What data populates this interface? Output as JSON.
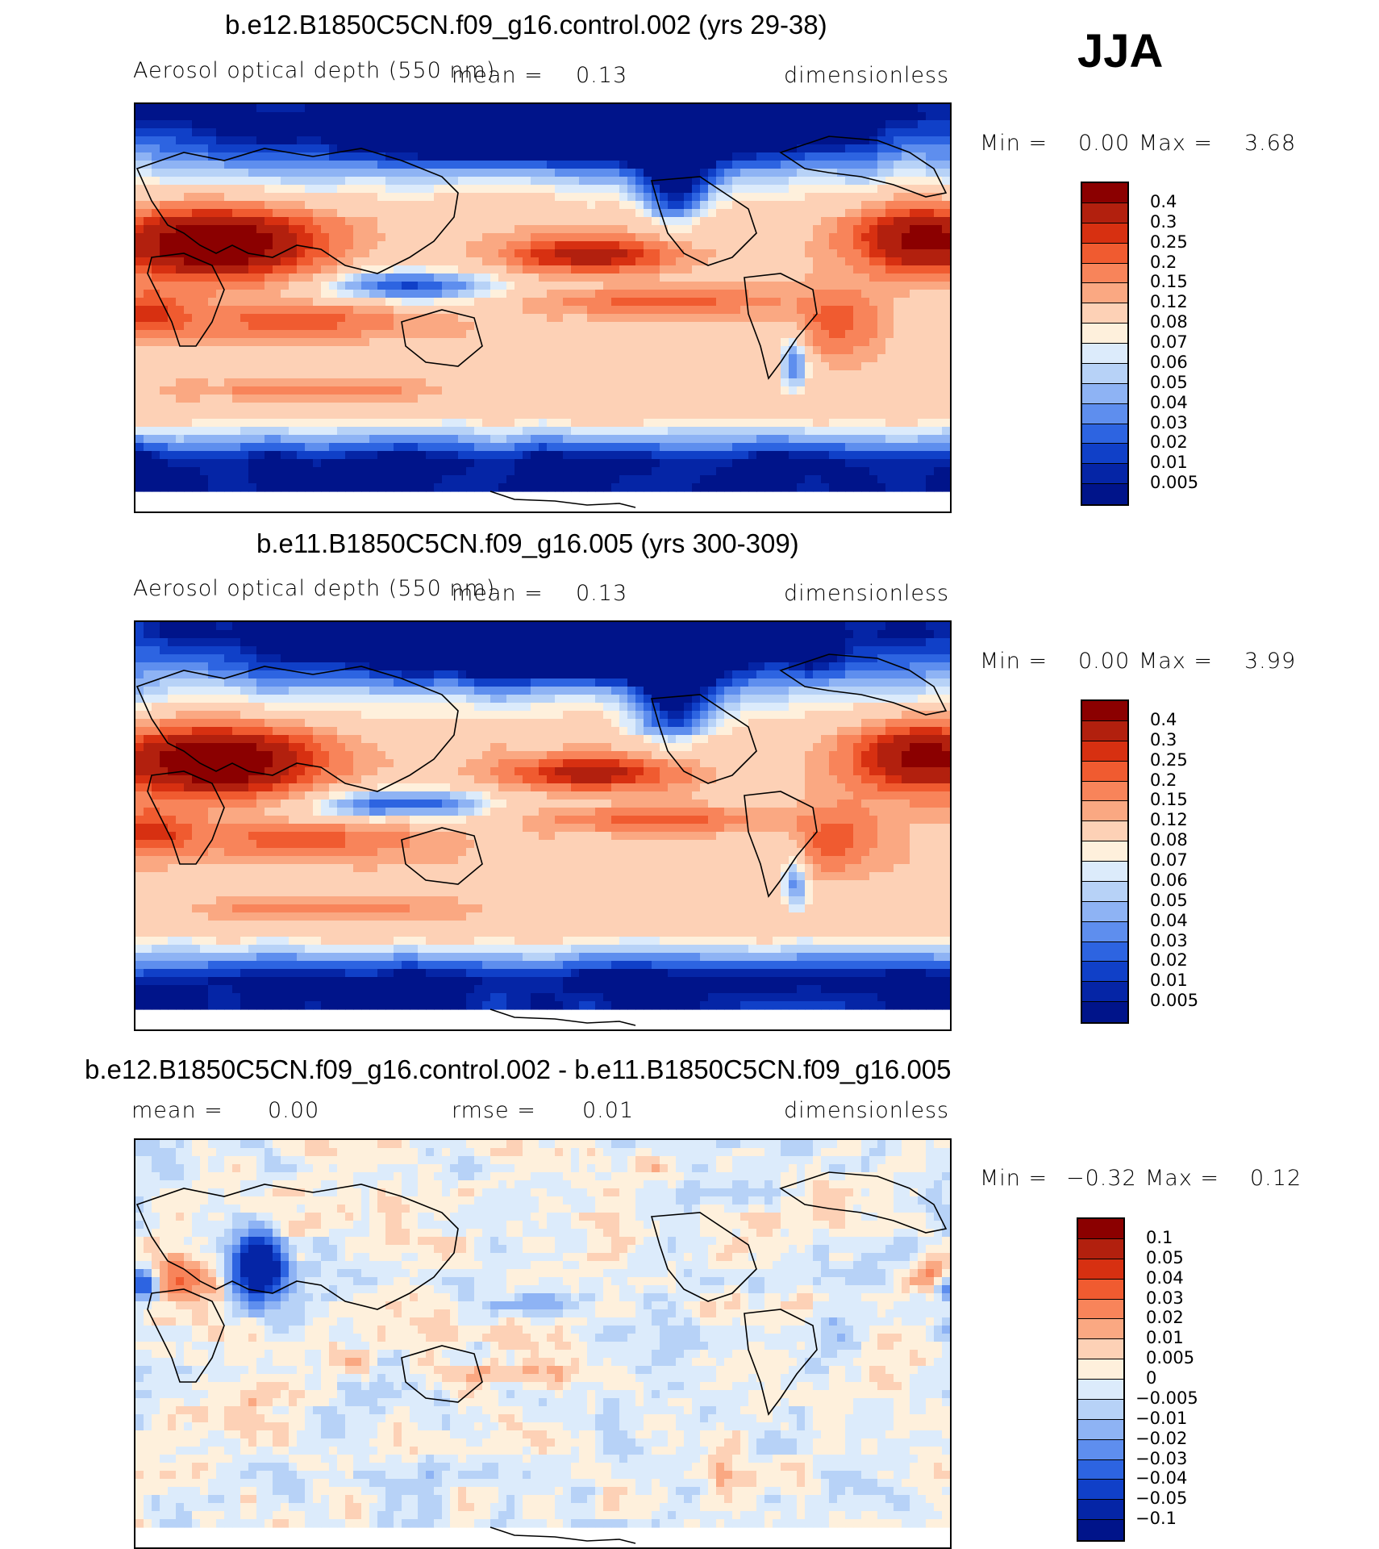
{
  "season": "JJA",
  "colors": {
    "abs_palette": [
      "#8B0000",
      "#B2200E",
      "#D73011",
      "#F05B30",
      "#F8845A",
      "#FAA882",
      "#FDD1B6",
      "#FEF0DC",
      "#DCEBFB",
      "#B7D2F7",
      "#8EB3F4",
      "#5E8EEE",
      "#2D64E1",
      "#1040C8",
      "#0525A6",
      "#00148A"
    ],
    "diff_palette": [
      "#8B0000",
      "#B2200E",
      "#D73011",
      "#F05B30",
      "#F8845A",
      "#FAA882",
      "#FDD1B6",
      "#FEF0DC",
      "#DCEBFB",
      "#B7D2F7",
      "#8EB3F4",
      "#5E8EEE",
      "#2D64E1",
      "#1040C8",
      "#0525A6",
      "#00148A"
    ]
  },
  "panels": [
    {
      "title": "b.e12.B1850C5CN.f09_g16.control.002 (yrs 29-38)",
      "left_label": "Aerosol optical depth (550 nm)",
      "mean_label": "mean =",
      "mean_value": "0.13",
      "units": "dimensionless",
      "min_label": "Min =",
      "min_value": "0.00",
      "max_label": "Max =",
      "max_value": "3.68"
    },
    {
      "title": "b.e11.B1850C5CN.f09_g16.005 (yrs 300-309)",
      "left_label": "Aerosol optical depth (550 nm)",
      "mean_label": "mean =",
      "mean_value": "0.13",
      "units": "dimensionless",
      "min_label": "Min =",
      "min_value": "0.00",
      "max_label": "Max =",
      "max_value": "3.99"
    },
    {
      "title": "b.e12.B1850C5CN.f09_g16.control.002 - b.e11.B1850C5CN.f09_g16.005",
      "left_label": "mean =",
      "left_value": "0.00",
      "rmse_label": "rmse =",
      "rmse_value": "0.01",
      "units": "dimensionless",
      "min_label": "Min =",
      "min_value": "−0.32",
      "max_label": "Max =",
      "max_value": "0.12"
    }
  ],
  "chart_data": [
    {
      "type": "heatmap",
      "title": "b.e12.B1850C5CN.f09_g16.control.002 (yrs 29-38)",
      "variable": "Aerosol optical depth (550 nm)",
      "units": "dimensionless",
      "mean": 0.13,
      "min": 0.0,
      "max": 3.68,
      "season": "JJA",
      "contour_levels": [
        0.4,
        0.3,
        0.25,
        0.2,
        0.15,
        0.12,
        0.08,
        0.07,
        0.06,
        0.05,
        0.04,
        0.03,
        0.02,
        0.01,
        0.005
      ],
      "colorbar_labels": [
        "0.4",
        "0.3",
        "0.25",
        "0.2",
        "0.15",
        "0.12",
        "0.08",
        "0.07",
        "0.06",
        "0.05",
        "0.04",
        "0.03",
        "0.02",
        "0.01",
        "0.005"
      ]
    },
    {
      "type": "heatmap",
      "title": "b.e11.B1850C5CN.f09_g16.005 (yrs 300-309)",
      "variable": "Aerosol optical depth (550 nm)",
      "units": "dimensionless",
      "mean": 0.13,
      "min": 0.0,
      "max": 3.99,
      "season": "JJA",
      "contour_levels": [
        0.4,
        0.3,
        0.25,
        0.2,
        0.15,
        0.12,
        0.08,
        0.07,
        0.06,
        0.05,
        0.04,
        0.03,
        0.02,
        0.01,
        0.005
      ],
      "colorbar_labels": [
        "0.4",
        "0.3",
        "0.25",
        "0.2",
        "0.15",
        "0.12",
        "0.08",
        "0.07",
        "0.06",
        "0.05",
        "0.04",
        "0.03",
        "0.02",
        "0.01",
        "0.005"
      ]
    },
    {
      "type": "heatmap",
      "title": "b.e12.B1850C5CN.f09_g16.control.002 - b.e11.B1850C5CN.f09_g16.005",
      "units": "dimensionless",
      "mean": 0.0,
      "rmse": 0.01,
      "min": -0.32,
      "max": 0.12,
      "season": "JJA",
      "contour_levels": [
        0.1,
        0.05,
        0.04,
        0.03,
        0.02,
        0.01,
        0.005,
        0,
        -0.005,
        -0.01,
        -0.02,
        -0.03,
        -0.04,
        -0.05,
        -0.1
      ],
      "colorbar_labels": [
        "0.1",
        "0.05",
        "0.04",
        "0.03",
        "0.02",
        "0.01",
        "0.005",
        "0",
        "−0.005",
        "−0.01",
        "−0.02",
        "−0.03",
        "−0.04",
        "−0.05",
        "−0.1"
      ]
    }
  ]
}
